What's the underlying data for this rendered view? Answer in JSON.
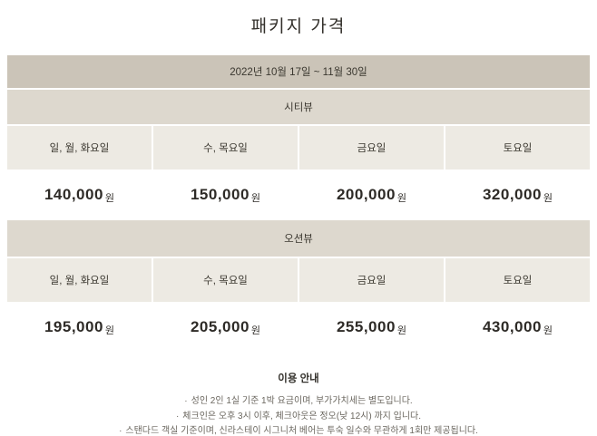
{
  "page": {
    "title": "패키지 가격"
  },
  "colors": {
    "period_bg": "#cbc4b8",
    "section_bg": "#ddd8ce",
    "day_header_bg": "#edeae3",
    "price_bg": "#ffffff",
    "text": "#3d3a35"
  },
  "table": {
    "period": "2022년 10월 17일 ~ 11월 30일",
    "currency": "원",
    "sections": [
      {
        "name": "시티뷰",
        "days": [
          "일, 월, 화요일",
          "수, 목요일",
          "금요일",
          "토요일"
        ],
        "prices": [
          "140,000",
          "150,000",
          "200,000",
          "320,000"
        ]
      },
      {
        "name": "오션뷰",
        "days": [
          "일, 월, 화요일",
          "수, 목요일",
          "금요일",
          "토요일"
        ],
        "prices": [
          "195,000",
          "205,000",
          "255,000",
          "430,000"
        ]
      }
    ]
  },
  "notice": {
    "title": "이용 안내",
    "bullet": "·",
    "items": [
      "성인 2인 1실 기준 1박 요금이며, 부가가치세는 별도입니다.",
      "체크인은 오후 3시 이후, 체크아웃은 정오(낮 12시) 까지 입니다.",
      "스탠다드 객실 기준이며, 신라스테이 시그니처 베어는 투숙 일수와 무관하게 1회만 제공됩니다."
    ]
  }
}
